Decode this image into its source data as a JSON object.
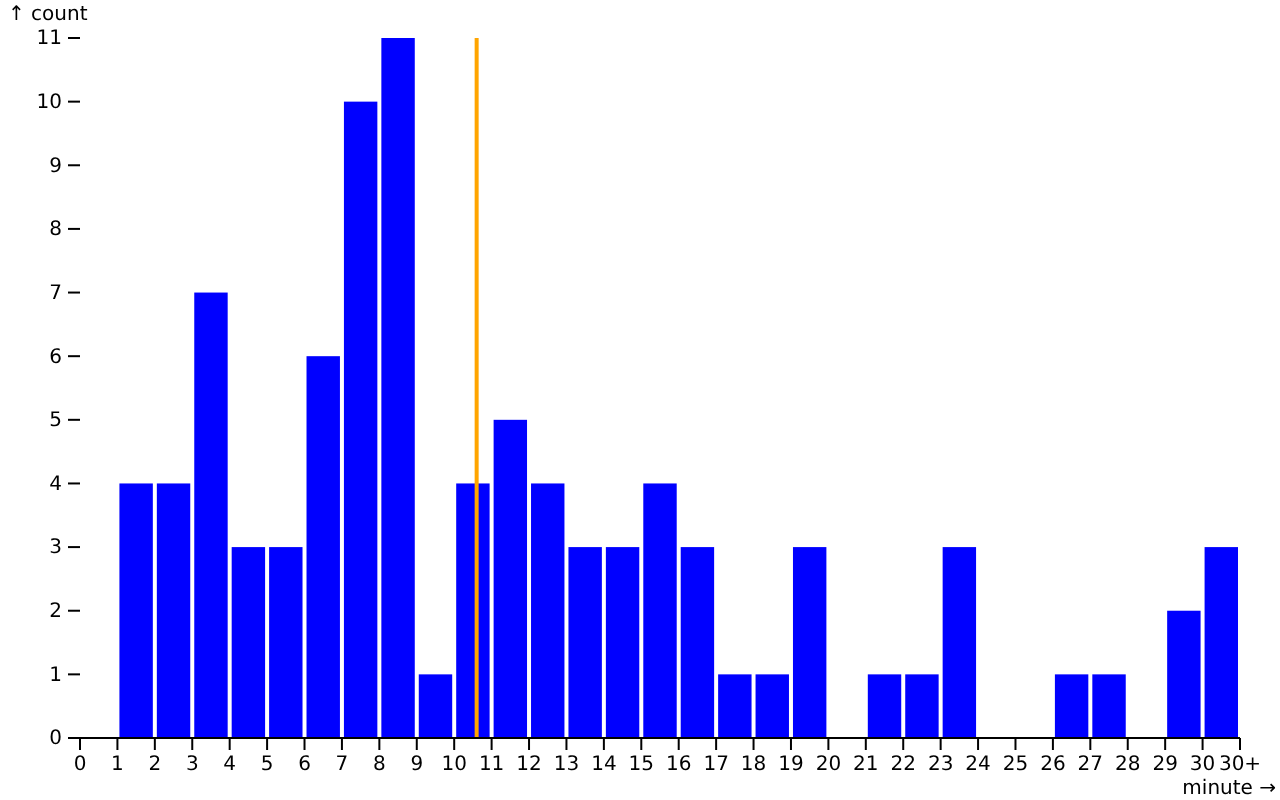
{
  "chart_data": {
    "type": "histogram",
    "xlabel": "minute →",
    "ylabel": "↑ count",
    "bins": [
      0,
      1,
      2,
      3,
      4,
      5,
      6,
      7,
      8,
      9,
      10,
      11,
      12,
      13,
      14,
      15,
      16,
      17,
      18,
      19,
      20,
      21,
      22,
      23,
      24,
      25,
      26,
      27,
      28,
      29,
      30,
      31
    ],
    "values": [
      0,
      4,
      4,
      7,
      3,
      3,
      6,
      10,
      11,
      1,
      4,
      5,
      4,
      3,
      3,
      4,
      3,
      1,
      1,
      3,
      0,
      1,
      1,
      3,
      0,
      0,
      1,
      1,
      0,
      2,
      3
    ],
    "color": "#0000ff",
    "xlim": [
      0,
      31
    ],
    "xticks": [
      0,
      1,
      2,
      3,
      4,
      5,
      6,
      7,
      8,
      9,
      10,
      11,
      12,
      13,
      14,
      15,
      16,
      17,
      18,
      19,
      20,
      21,
      22,
      23,
      24,
      25,
      26,
      27,
      28,
      29,
      30,
      {
        "value": 31,
        "label": "30+"
      }
    ],
    "ylim": [
      0,
      11
    ],
    "yticks": [
      0,
      1,
      2,
      3,
      4,
      5,
      6,
      7,
      8,
      9,
      10,
      11
    ],
    "ref_lines": [
      {
        "axis": "x",
        "value": 10.6,
        "color": "#ffa500"
      }
    ]
  }
}
